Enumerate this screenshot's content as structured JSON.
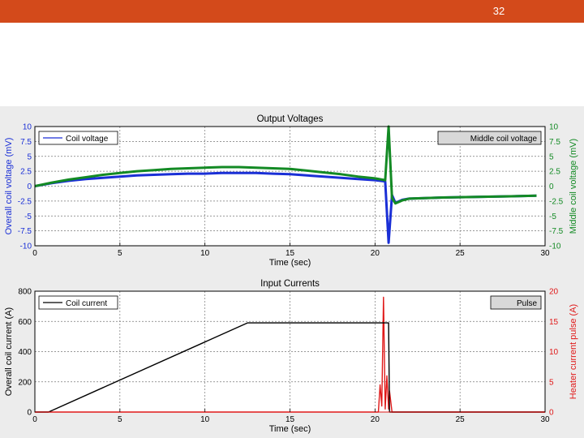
{
  "slide": {
    "number": "32"
  },
  "colors": {
    "topbar": "#d34a1b",
    "blue": "#1a2fd6",
    "green": "#138a24",
    "black": "#000000",
    "red": "#e01818"
  },
  "chart_data": [
    {
      "type": "line",
      "title": "Output Voltages",
      "xlabel": "Time (sec)",
      "ylabel": "Overall coil voltage (mV)",
      "ylabel_right": "Middle coil voltage (mV)",
      "xlim": [
        0,
        30
      ],
      "ylim": [
        -10,
        10
      ],
      "ylim_right": [
        -10,
        10
      ],
      "x_ticks": [
        "0",
        "5",
        "10",
        "15",
        "20",
        "25",
        "30"
      ],
      "y_ticks": [
        "10",
        "7.5",
        "5",
        "2.5",
        "0",
        "-2.5",
        "-5",
        "-7.5",
        "-10"
      ],
      "y_ticks_right": [
        "10",
        "7.5",
        "5",
        "2.5",
        "0",
        "-2.5",
        "-5",
        "-7.5",
        "-10"
      ],
      "grid": true,
      "legend_left": "Coil voltage",
      "legend_right": "Middle coil voltage",
      "series": [
        {
          "name": "Coil voltage",
          "color": "#1a2fd6",
          "x": [
            0,
            1,
            2,
            3,
            4,
            5,
            6,
            7,
            8,
            9,
            10,
            11,
            12,
            13,
            14,
            15,
            16,
            17,
            18,
            19,
            20,
            20.6,
            20.8,
            21.0,
            21.2,
            21.6,
            22,
            24,
            26,
            28,
            29.5
          ],
          "y": [
            0,
            0.5,
            0.9,
            1.2,
            1.4,
            1.6,
            1.8,
            1.9,
            2.0,
            2.1,
            2.1,
            2.2,
            2.2,
            2.2,
            2.1,
            2.0,
            1.8,
            1.6,
            1.4,
            1.2,
            1.0,
            0.8,
            -9.5,
            -1.5,
            -2.8,
            -2.3,
            -2.1,
            -1.9,
            -1.8,
            -1.7,
            -1.6
          ]
        },
        {
          "name": "Middle coil voltage",
          "color": "#138a24",
          "x": [
            0,
            1,
            2,
            3,
            4,
            5,
            6,
            7,
            8,
            9,
            10,
            11,
            12,
            13,
            14,
            15,
            16,
            17,
            18,
            19,
            20,
            20.6,
            20.8,
            21.0,
            21.2,
            21.6,
            22,
            24,
            26,
            28,
            29.5
          ],
          "y": [
            0,
            0.6,
            1.1,
            1.5,
            1.9,
            2.2,
            2.5,
            2.7,
            2.9,
            3.0,
            3.1,
            3.2,
            3.2,
            3.1,
            3.0,
            2.9,
            2.6,
            2.3,
            2.0,
            1.6,
            1.3,
            1.0,
            10,
            -2.0,
            -2.9,
            -2.4,
            -2.1,
            -1.9,
            -1.8,
            -1.7,
            -1.6
          ]
        }
      ]
    },
    {
      "type": "line",
      "title": "Input Currents",
      "xlabel": "Time (sec)",
      "ylabel": "Overall coil current (A)",
      "ylabel_right": "Heater current pulse (A)",
      "xlim": [
        0,
        30
      ],
      "ylim": [
        0,
        800
      ],
      "ylim_right": [
        0,
        20
      ],
      "x_ticks": [
        "0",
        "5",
        "10",
        "15",
        "20",
        "25",
        "30"
      ],
      "y_ticks": [
        "800",
        "600",
        "400",
        "200",
        "0"
      ],
      "y_ticks_right": [
        "20",
        "15",
        "10",
        "5",
        "0"
      ],
      "grid": true,
      "legend_left": "Coil current",
      "legend_right": "Pulse",
      "series": [
        {
          "name": "Coil current",
          "color": "#000000",
          "x": [
            0,
            0.8,
            12.5,
            20.8,
            20.85,
            21.0,
            30
          ],
          "y": [
            0,
            0,
            590,
            590,
            0,
            0,
            0
          ]
        },
        {
          "name": "Pulse",
          "color": "#e01818",
          "x": [
            0,
            20.2,
            20.3,
            20.4,
            20.5,
            20.6,
            20.7,
            20.8,
            20.85,
            21.0,
            30
          ],
          "y": [
            0,
            0,
            4.5,
            1,
            19,
            0.5,
            6,
            0.5,
            3.5,
            0,
            0
          ]
        }
      ]
    }
  ]
}
